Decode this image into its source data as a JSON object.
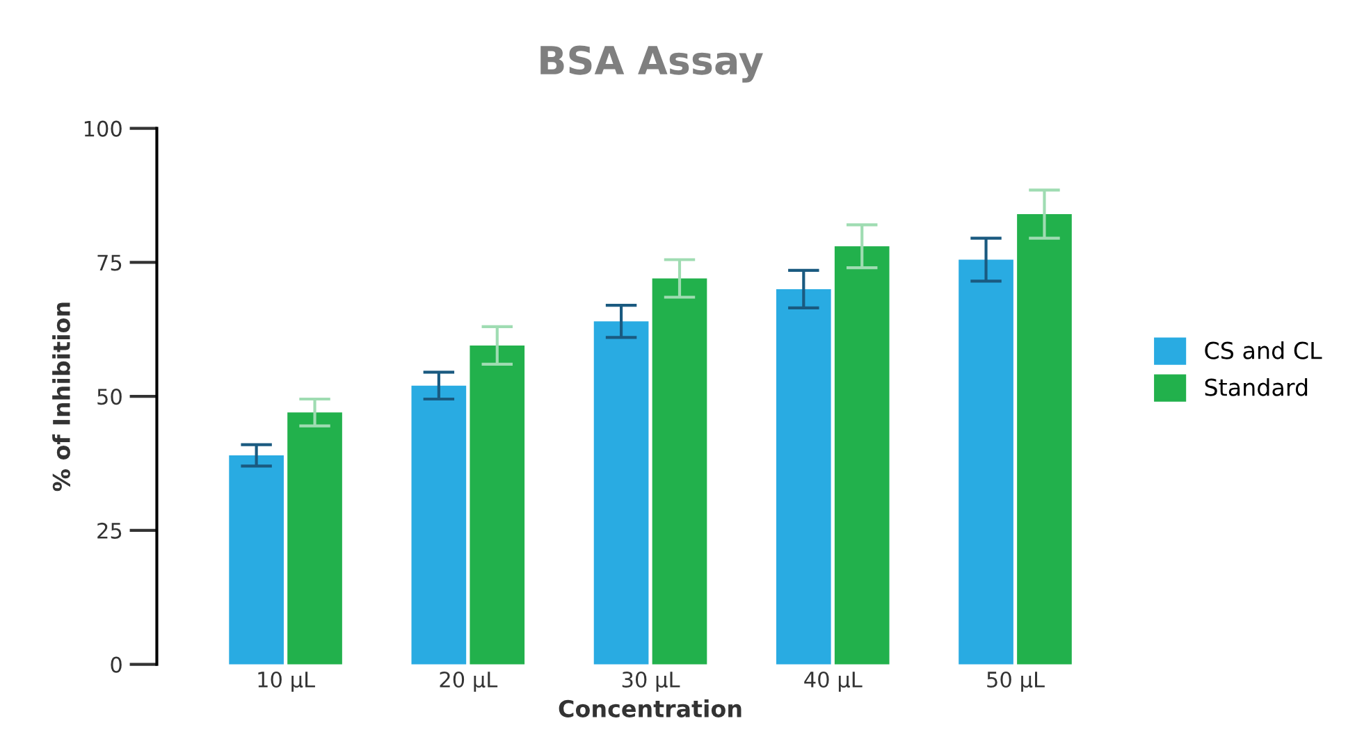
{
  "chart_data": {
    "type": "bar",
    "title": "BSA Assay",
    "xlabel": "Concentration",
    "ylabel": "% of Inhibition",
    "categories": [
      "10 µL",
      "20 µL",
      "30 µL",
      "40 µL",
      "50 µL"
    ],
    "series": [
      {
        "name": "CS and CL",
        "color": "#29abe2",
        "values": [
          39,
          52,
          64,
          70,
          75.5
        ],
        "errors": [
          2,
          2.5,
          3,
          3.5,
          4
        ]
      },
      {
        "name": "Standard",
        "color": "#22b14c",
        "values": [
          47,
          59.5,
          72,
          78,
          84
        ],
        "errors": [
          2.5,
          3.5,
          3.5,
          4,
          4.5
        ]
      }
    ],
    "ylim": [
      0,
      100
    ],
    "yticks": [
      0,
      25,
      50,
      75,
      100
    ],
    "grid": false,
    "legend": "right"
  }
}
